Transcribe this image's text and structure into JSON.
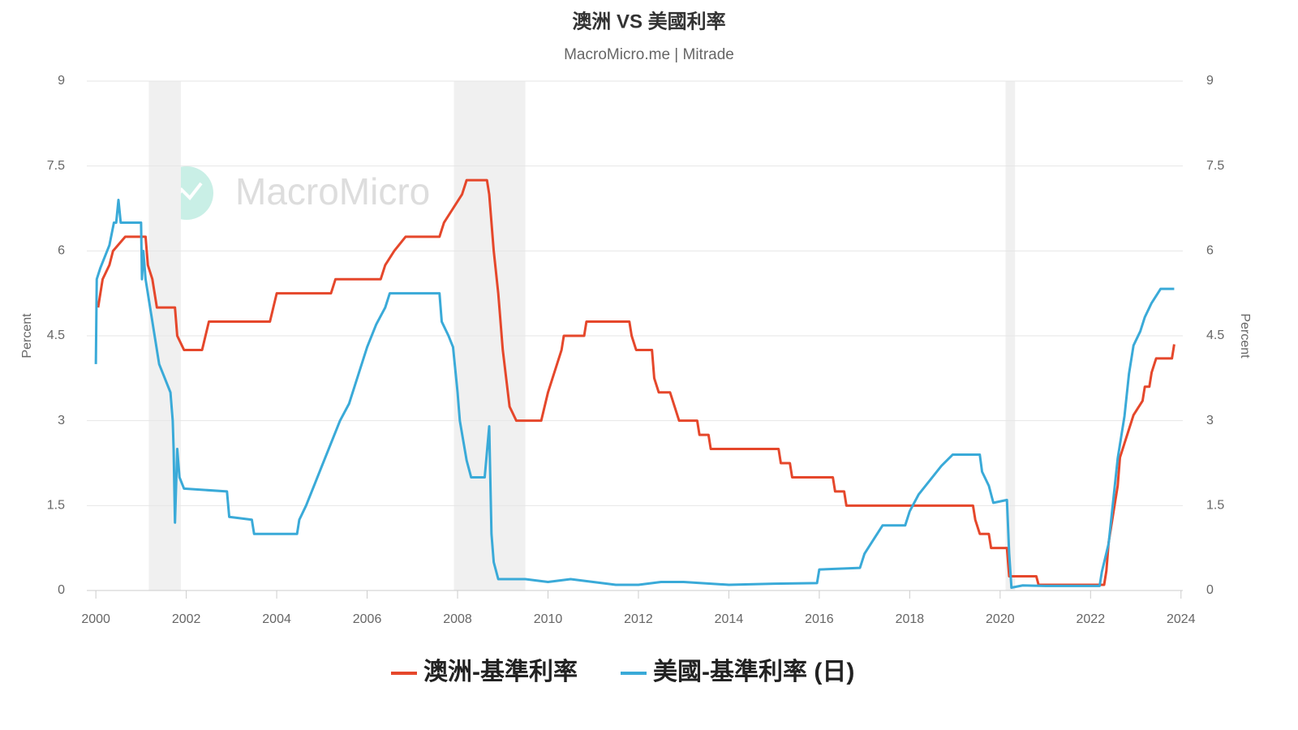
{
  "chart_data": {
    "type": "line",
    "title": "澳洲 VS 美國利率",
    "subtitle": "MacroMicro.me | Mitrade",
    "watermark": "MacroMicro",
    "y_label": "Percent",
    "y2_label": "Percent",
    "xlim": [
      1999.8,
      2024.04
    ],
    "xticks": [
      2000,
      2002,
      2004,
      2006,
      2008,
      2010,
      2012,
      2014,
      2016,
      2018,
      2020,
      2022,
      2024
    ],
    "ylim": [
      0,
      9
    ],
    "yticks": [
      0,
      1.5,
      3,
      4.5,
      6,
      7.5,
      9
    ],
    "y2lim": [
      0,
      9
    ],
    "y2ticks": [
      0,
      1.5,
      3,
      4.5,
      6,
      7.5,
      9
    ],
    "grid": true,
    "legend": "bottom",
    "shaded_ranges": [
      [
        2001.17,
        2001.88
      ],
      [
        2007.92,
        2009.5
      ],
      [
        2020.12,
        2020.33
      ]
    ],
    "series": [
      {
        "name": "澳洲-基準利率",
        "color": "#e5472b",
        "x": [
          2000.05,
          2000.15,
          2000.3,
          2000.38,
          2000.65,
          2001.1,
          2001.15,
          2001.25,
          2001.35,
          2001.75,
          2001.8,
          2001.95,
          2002.35,
          2002.5,
          2003.85,
          2004.0,
          2005.2,
          2005.3,
          2006.3,
          2006.4,
          2006.6,
          2006.85,
          2007.6,
          2007.7,
          2007.9,
          2008.1,
          2008.2,
          2008.65,
          2008.7,
          2008.8,
          2008.9,
          2009.0,
          2009.15,
          2009.3,
          2009.85,
          2010.0,
          2010.1,
          2010.3,
          2010.35,
          2010.8,
          2010.85,
          2011.8,
          2011.85,
          2011.95,
          2012.3,
          2012.35,
          2012.45,
          2012.7,
          2012.8,
          2012.9,
          2013.3,
          2013.35,
          2013.55,
          2013.6,
          2015.1,
          2015.15,
          2015.35,
          2015.4,
          2016.3,
          2016.35,
          2016.55,
          2016.6,
          2019.4,
          2019.45,
          2019.55,
          2019.75,
          2019.8,
          2020.15,
          2020.2,
          2020.8,
          2020.85,
          2022.3,
          2022.35,
          2022.4,
          2022.5,
          2022.6,
          2022.65,
          2022.75,
          2022.85,
          2022.95,
          2023.15,
          2023.2,
          2023.3,
          2023.35,
          2023.45,
          2023.8,
          2023.85
        ],
        "values": [
          5.0,
          5.5,
          5.75,
          6.0,
          6.25,
          6.25,
          5.75,
          5.5,
          5.0,
          5.0,
          4.5,
          4.25,
          4.25,
          4.75,
          4.75,
          5.25,
          5.25,
          5.5,
          5.5,
          5.75,
          6.0,
          6.25,
          6.25,
          6.5,
          6.75,
          7.0,
          7.25,
          7.25,
          7.0,
          6.0,
          5.25,
          4.25,
          3.25,
          3.0,
          3.0,
          3.5,
          3.75,
          4.25,
          4.5,
          4.5,
          4.75,
          4.75,
          4.5,
          4.25,
          4.25,
          3.75,
          3.5,
          3.5,
          3.25,
          3.0,
          3.0,
          2.75,
          2.75,
          2.5,
          2.5,
          2.25,
          2.25,
          2.0,
          2.0,
          1.75,
          1.75,
          1.5,
          1.5,
          1.25,
          1.0,
          1.0,
          0.75,
          0.75,
          0.25,
          0.25,
          0.1,
          0.1,
          0.35,
          0.85,
          1.35,
          1.85,
          2.35,
          2.6,
          2.85,
          3.1,
          3.35,
          3.6,
          3.6,
          3.85,
          4.1,
          4.1,
          4.35
        ]
      },
      {
        "name": "美國-基準利率 (日)",
        "color": "#3aaad8",
        "axis": "y2",
        "x": [
          2000.0,
          2000.02,
          2000.1,
          2000.2,
          2000.3,
          2000.4,
          2000.45,
          2000.5,
          2000.55,
          2000.9,
          2001.0,
          2001.02,
          2001.05,
          2001.1,
          2001.2,
          2001.3,
          2001.4,
          2001.5,
          2001.65,
          2001.7,
          2001.72,
          2001.75,
          2001.8,
          2001.85,
          2001.95,
          2002.9,
          2002.95,
          2003.45,
          2003.5,
          2004.45,
          2004.5,
          2004.65,
          2004.8,
          2005.0,
          2005.2,
          2005.4,
          2005.6,
          2005.8,
          2006.0,
          2006.2,
          2006.4,
          2006.5,
          2007.6,
          2007.65,
          2007.8,
          2007.9,
          2008.0,
          2008.05,
          2008.2,
          2008.3,
          2008.6,
          2008.7,
          2008.75,
          2008.8,
          2008.9,
          2009.5,
          2010.0,
          2010.5,
          2011.0,
          2011.5,
          2012.0,
          2012.5,
          2013.0,
          2014.0,
          2015.0,
          2015.95,
          2016.0,
          2016.9,
          2017.0,
          2017.2,
          2017.4,
          2017.9,
          2018.0,
          2018.2,
          2018.4,
          2018.7,
          2018.95,
          2019.55,
          2019.6,
          2019.75,
          2019.85,
          2020.15,
          2020.2,
          2020.25,
          2020.5,
          2021.0,
          2022.2,
          2022.25,
          2022.4,
          2022.5,
          2022.6,
          2022.75,
          2022.85,
          2022.95,
          2023.1,
          2023.2,
          2023.35,
          2023.55,
          2023.85
        ],
        "values": [
          4.0,
          5.5,
          5.7,
          5.9,
          6.1,
          6.5,
          6.5,
          6.9,
          6.5,
          6.5,
          6.5,
          5.5,
          6.0,
          5.5,
          5.0,
          4.5,
          4.0,
          3.8,
          3.5,
          3.0,
          2.5,
          1.2,
          2.5,
          2.0,
          1.8,
          1.75,
          1.3,
          1.25,
          1.0,
          1.0,
          1.25,
          1.5,
          1.8,
          2.2,
          2.6,
          3.0,
          3.3,
          3.8,
          4.3,
          4.7,
          5.0,
          5.25,
          5.25,
          4.75,
          4.5,
          4.3,
          3.5,
          3.0,
          2.3,
          2.0,
          2.0,
          2.9,
          1.0,
          0.5,
          0.2,
          0.2,
          0.15,
          0.2,
          0.15,
          0.1,
          0.1,
          0.15,
          0.15,
          0.1,
          0.12,
          0.13,
          0.37,
          0.4,
          0.65,
          0.9,
          1.15,
          1.15,
          1.4,
          1.7,
          1.9,
          2.2,
          2.4,
          2.4,
          2.1,
          1.85,
          1.55,
          1.6,
          0.65,
          0.05,
          0.09,
          0.08,
          0.08,
          0.33,
          0.83,
          1.58,
          2.33,
          3.08,
          3.83,
          4.33,
          4.58,
          4.83,
          5.08,
          5.33,
          5.33
        ]
      }
    ]
  }
}
